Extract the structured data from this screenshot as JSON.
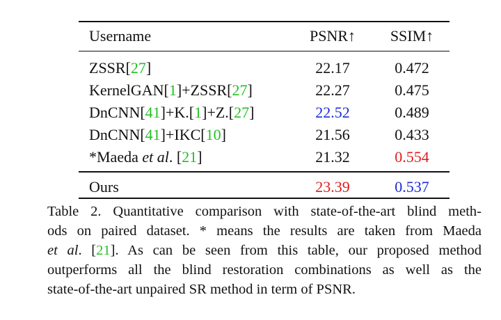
{
  "table": {
    "headers": {
      "method": "Username",
      "psnr": "PSNR↑",
      "ssim": "SSIM↑"
    },
    "rows": [
      {
        "parts": [
          {
            "text": "ZSSR["
          },
          {
            "text": "27",
            "cite": true
          },
          {
            "text": "]"
          }
        ],
        "psnr": "22.17",
        "ssim": "0.472"
      },
      {
        "parts": [
          {
            "text": "KernelGAN["
          },
          {
            "text": "1",
            "cite": true
          },
          {
            "text": "]+ZSSR["
          },
          {
            "text": "27",
            "cite": true
          },
          {
            "text": "]"
          }
        ],
        "psnr": "22.27",
        "ssim": "0.475"
      },
      {
        "parts": [
          {
            "text": "DnCNN["
          },
          {
            "text": "41",
            "cite": true
          },
          {
            "text": "]+K.["
          },
          {
            "text": "1",
            "cite": true
          },
          {
            "text": "]+Z.["
          },
          {
            "text": "27",
            "cite": true
          },
          {
            "text": "]"
          }
        ],
        "psnr": "22.52",
        "psnr_class": "second",
        "ssim": "0.489"
      },
      {
        "parts": [
          {
            "text": "DnCNN["
          },
          {
            "text": "41",
            "cite": true
          },
          {
            "text": "]+IKC["
          },
          {
            "text": "10",
            "cite": true
          },
          {
            "text": "]"
          }
        ],
        "psnr": "21.56",
        "ssim": "0.433"
      },
      {
        "parts": [
          {
            "text": "*Maeda "
          },
          {
            "text": "et al",
            "italic": true
          },
          {
            "text": ". ["
          },
          {
            "text": "21",
            "cite": true
          },
          {
            "text": "]"
          }
        ],
        "psnr": "21.32",
        "ssim": "0.554",
        "ssim_class": "best"
      }
    ],
    "ours": {
      "method": "Ours",
      "psnr": "23.39",
      "psnr_class": "best",
      "ssim": "0.537",
      "ssim_class": "second"
    }
  },
  "caption": {
    "lines": [
      [
        {
          "text": "Table 2. Quantitative comparison with state-of-the-art blind meth-"
        }
      ],
      [
        {
          "text": "ods on paired dataset. * means the results are taken from Maeda"
        }
      ],
      [
        {
          "text": "et al",
          "italic": true
        },
        {
          "text": ". ["
        },
        {
          "text": "21",
          "cite": true
        },
        {
          "text": "]. As can be seen from this table, our proposed method"
        }
      ],
      [
        {
          "text": "outperforms all the blind restoration combinations as well as the"
        }
      ],
      [
        {
          "text": "state-of-the-art unpaired SR method in term of PSNR."
        }
      ]
    ]
  },
  "colors": {
    "citation": "#22c022",
    "best": "#e01b1b",
    "second": "#1a2bd6"
  }
}
